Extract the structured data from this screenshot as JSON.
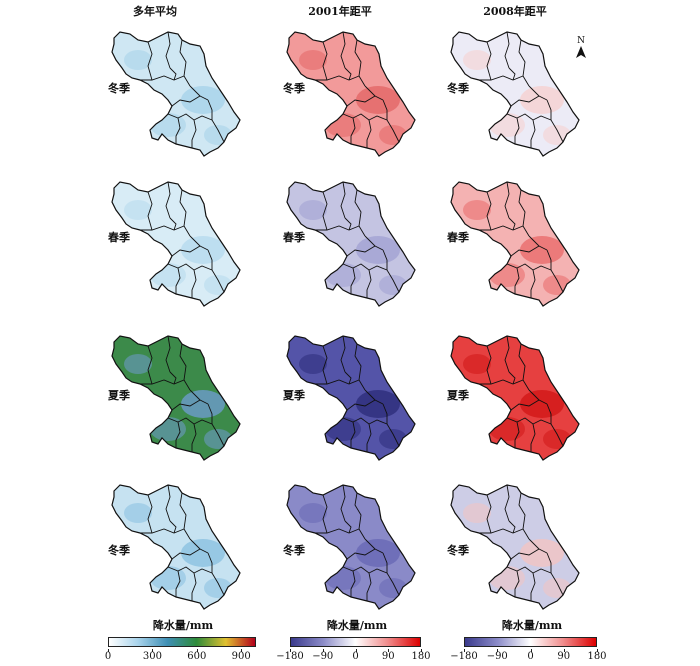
{
  "columns": [
    "多年平均",
    "2001年距平",
    "2008年距平"
  ],
  "rows": [
    "冬季",
    "春季",
    "夏季",
    "冬季"
  ],
  "north_label": "N",
  "legends": [
    {
      "title": "降水量/mm",
      "ticks": [
        "0",
        "300",
        "600",
        "900"
      ],
      "colors": [
        "#ffffff",
        "#a8d3eb",
        "#3f8fb5",
        "#2e8b3a",
        "#e0c030",
        "#b3001b"
      ]
    },
    {
      "title": "降水量/mm",
      "ticks": [
        "−180",
        "−90",
        "0",
        "90",
        "180"
      ],
      "colors": [
        "#3a3a8c",
        "#8c8cc8",
        "#ffffff",
        "#f08c8c",
        "#dd0000"
      ]
    },
    {
      "title": "降水量/mm",
      "ticks": [
        "−180",
        "−90",
        "0",
        "90",
        "180"
      ],
      "colors": [
        "#3a3a8c",
        "#8c8cc8",
        "#ffffff",
        "#f08c8c",
        "#dd0000"
      ]
    }
  ],
  "map_fills": [
    [
      "#cfe7f3",
      "#f29a9a",
      "#ecebf6"
    ],
    [
      "#d8ecf6",
      "#c4c4e2",
      "#f4b2b2"
    ],
    [
      "#3c8a4a",
      "#5454a8",
      "#e64040"
    ],
    [
      "#c6e2f1",
      "#8a8ac8",
      "#cdcde6"
    ]
  ],
  "map_accents": [
    [
      "#a9d4ea",
      "#e46a6a",
      "#f6d2d2"
    ],
    [
      "#b9dcef",
      "#a4a4d4",
      "#ea7070"
    ],
    [
      "#6a9ac4",
      "#30307e",
      "#d21a1a"
    ],
    [
      "#8ec3e2",
      "#6a6ab6",
      "#f0c4c4"
    ]
  ]
}
